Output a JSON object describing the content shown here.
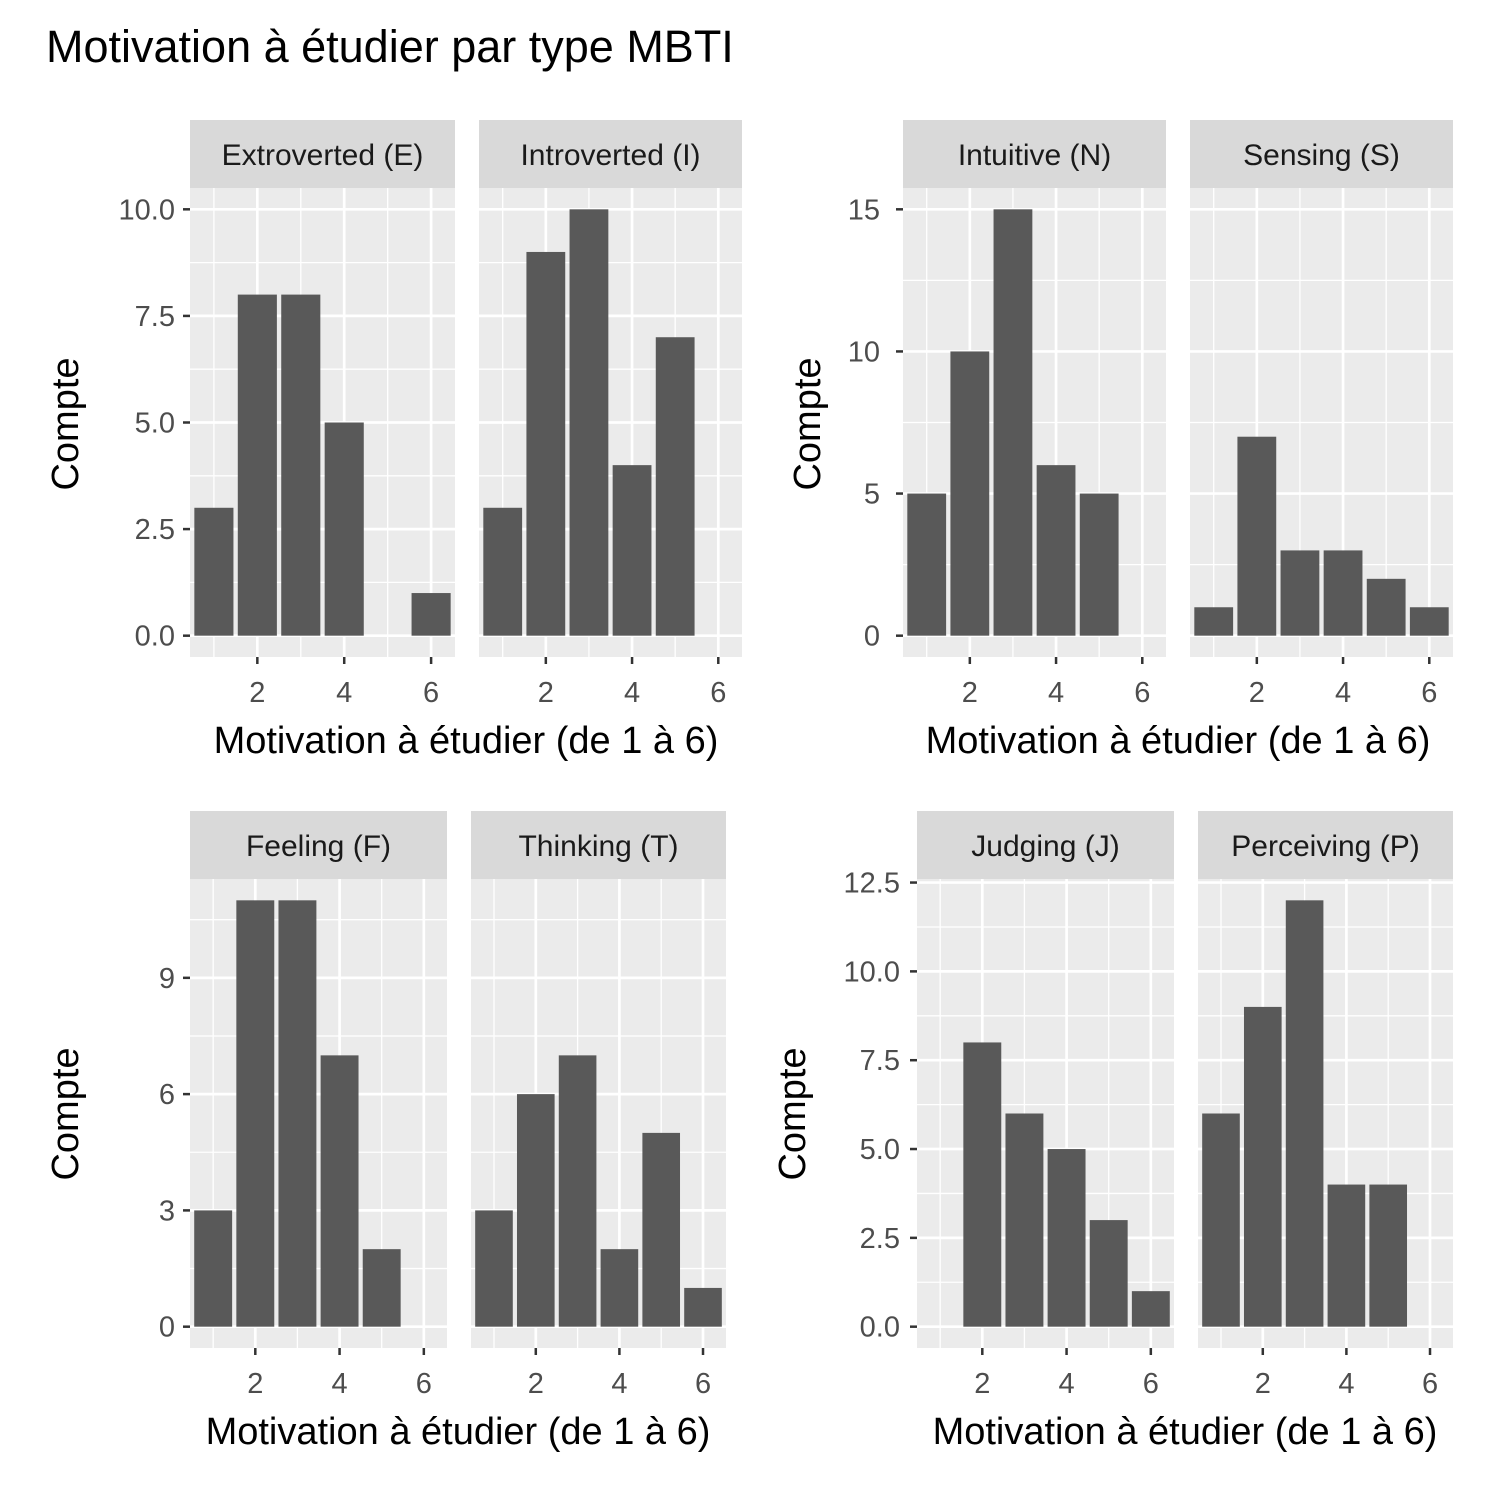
{
  "title": "Motivation à étudier par type MBTI",
  "colors": {
    "panel_bg": "#ebebeb",
    "strip_bg": "#d9d9d9",
    "grid": "#ffffff",
    "bar": "#595959",
    "tick_text": "#4d4d4d",
    "tick_mark": "#333333",
    "text": "#000000"
  },
  "chart_data": [
    {
      "type": "bar",
      "xlabel": "Motivation à étudier (de 1 à 6)",
      "ylabel": "Compte",
      "xlim": [
        0.45,
        6.55
      ],
      "ylim": [
        -0.5,
        10.5
      ],
      "xticks": [
        2,
        4,
        6
      ],
      "yticks": [
        0,
        2.5,
        5,
        7.5,
        10
      ],
      "ytick_labels": [
        "0.0",
        "2.5",
        "5.0",
        "7.5",
        "10.0"
      ],
      "grid": true,
      "facets": [
        {
          "label": "Extroverted (E)",
          "x": [
            1,
            2,
            3,
            4,
            6
          ],
          "values": [
            3,
            8,
            8,
            5,
            1
          ]
        },
        {
          "label": "Introverted (I)",
          "x": [
            1,
            2,
            3,
            4,
            5
          ],
          "values": [
            3,
            9,
            10,
            4,
            7
          ]
        }
      ]
    },
    {
      "type": "bar",
      "xlabel": "Motivation à étudier (de 1 à 6)",
      "ylabel": "Compte",
      "xlim": [
        0.45,
        6.55
      ],
      "ylim": [
        -0.75,
        15.75
      ],
      "xticks": [
        2,
        4,
        6
      ],
      "yticks": [
        0,
        5,
        10,
        15
      ],
      "ytick_labels": [
        "0",
        "5",
        "10",
        "15"
      ],
      "grid": true,
      "facets": [
        {
          "label": "Intuitive (N)",
          "x": [
            1,
            2,
            3,
            4,
            5
          ],
          "values": [
            5,
            10,
            15,
            6,
            5
          ]
        },
        {
          "label": "Sensing (S)",
          "x": [
            1,
            2,
            3,
            4,
            5,
            6
          ],
          "values": [
            1,
            7,
            3,
            3,
            2,
            1
          ]
        }
      ]
    },
    {
      "type": "bar",
      "xlabel": "Motivation à étudier (de 1 à 6)",
      "ylabel": "Compte",
      "xlim": [
        0.45,
        6.55
      ],
      "ylim": [
        -0.55,
        11.55
      ],
      "xticks": [
        2,
        4,
        6
      ],
      "yticks": [
        0,
        3,
        6,
        9
      ],
      "ytick_labels": [
        "0",
        "3",
        "6",
        "9"
      ],
      "grid": true,
      "facets": [
        {
          "label": "Feeling (F)",
          "x": [
            1,
            2,
            3,
            4,
            5
          ],
          "values": [
            3,
            11,
            11,
            7,
            2
          ]
        },
        {
          "label": "Thinking (T)",
          "x": [
            1,
            2,
            3,
            4,
            5,
            6
          ],
          "values": [
            3,
            6,
            7,
            2,
            5,
            1
          ]
        }
      ]
    },
    {
      "type": "bar",
      "xlabel": "Motivation à étudier (de 1 à 6)",
      "ylabel": "Compte",
      "xlim": [
        0.45,
        6.55
      ],
      "ylim": [
        -0.6,
        12.6
      ],
      "xticks": [
        2,
        4,
        6
      ],
      "yticks": [
        0,
        2.5,
        5,
        7.5,
        10,
        12.5
      ],
      "ytick_labels": [
        "0.0",
        "2.5",
        "5.0",
        "7.5",
        "10.0",
        "12.5"
      ],
      "grid": true,
      "facets": [
        {
          "label": "Judging (J)",
          "x": [
            2,
            3,
            4,
            5,
            6
          ],
          "values": [
            8,
            6,
            5,
            3,
            1
          ]
        },
        {
          "label": "Perceiving (P)",
          "x": [
            1,
            2,
            3,
            4,
            5
          ],
          "values": [
            6,
            9,
            12,
            4,
            4
          ]
        }
      ]
    }
  ]
}
